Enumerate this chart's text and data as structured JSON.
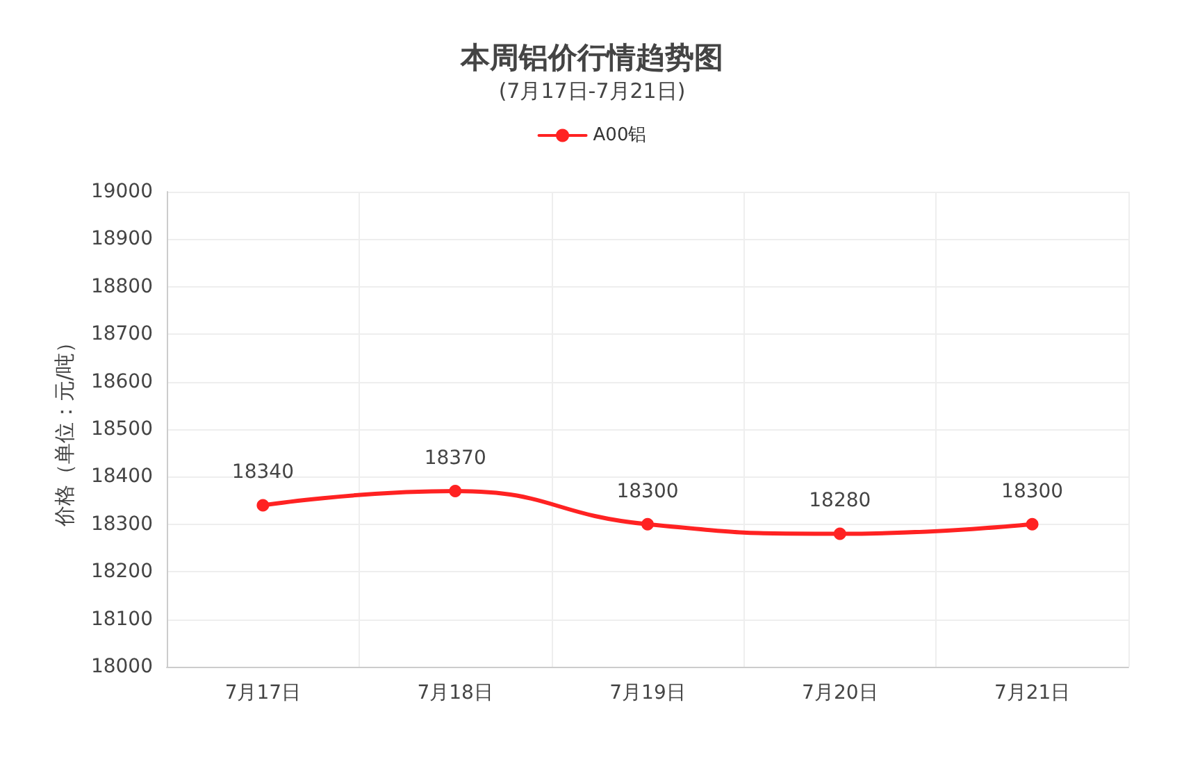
{
  "chart_data": {
    "type": "line",
    "title": "本周铝价行情趋势图",
    "subtitle": "(7月17日-7月21日)",
    "ylabel": "价格（单位：元/吨）",
    "categories": [
      "7月17日",
      "7月18日",
      "7月19日",
      "7月20日",
      "7月21日"
    ],
    "series": [
      {
        "name": "A00铝",
        "color": "#ff2222",
        "values": [
          18340,
          18370,
          18300,
          18280,
          18300
        ]
      }
    ],
    "ylim": [
      18000,
      19000
    ],
    "yticks": [
      18000,
      18100,
      18200,
      18300,
      18400,
      18500,
      18600,
      18700,
      18800,
      18900,
      19000
    ],
    "grid": true,
    "legend": "top",
    "marker": "circle",
    "line_style": "solid",
    "data_labels": true
  }
}
